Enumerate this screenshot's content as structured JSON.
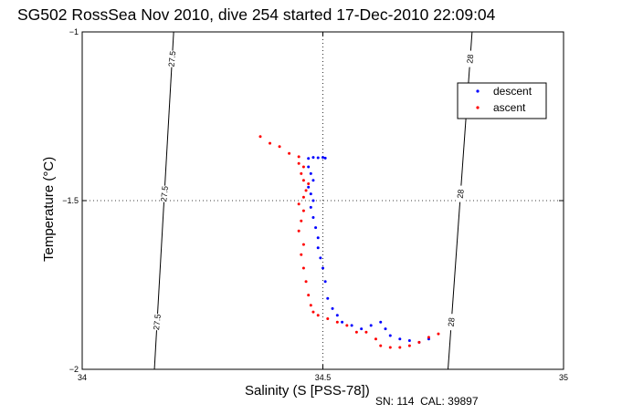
{
  "chart_data": {
    "type": "scatter",
    "title": "SG502 RossSea Nov 2010, dive 254 started 17-Dec-2010 22:09:04",
    "xlabel": "Salinity (S [PSS-78])",
    "ylabel": "Temperature (°C)",
    "xlim": [
      34,
      35
    ],
    "ylim": [
      -2,
      -1
    ],
    "xticks": [
      "34",
      "34.5",
      "35"
    ],
    "yticks": [
      "-1",
      "-1.5",
      "-2"
    ],
    "grid": "dotted at 34.5 and -1.5",
    "legend_position": "top-right",
    "footer": "SN: 114  CAL: 39897",
    "series": [
      {
        "name": "descent",
        "color": "#0000ff",
        "points": [
          [
            34.47,
            -1.375
          ],
          [
            34.48,
            -1.372
          ],
          [
            34.49,
            -1.373
          ],
          [
            34.5,
            -1.372
          ],
          [
            34.505,
            -1.374
          ],
          [
            34.47,
            -1.4
          ],
          [
            34.475,
            -1.42
          ],
          [
            34.48,
            -1.44
          ],
          [
            34.47,
            -1.46
          ],
          [
            34.475,
            -1.48
          ],
          [
            34.48,
            -1.5
          ],
          [
            34.475,
            -1.52
          ],
          [
            34.48,
            -1.55
          ],
          [
            34.485,
            -1.58
          ],
          [
            34.49,
            -1.61
          ],
          [
            34.49,
            -1.64
          ],
          [
            34.495,
            -1.67
          ],
          [
            34.5,
            -1.7
          ],
          [
            34.505,
            -1.74
          ],
          [
            34.51,
            -1.79
          ],
          [
            34.52,
            -1.82
          ],
          [
            34.53,
            -1.84
          ],
          [
            34.54,
            -1.86
          ],
          [
            34.56,
            -1.87
          ],
          [
            34.58,
            -1.88
          ],
          [
            34.6,
            -1.87
          ],
          [
            34.62,
            -1.86
          ],
          [
            34.63,
            -1.88
          ],
          [
            34.64,
            -1.9
          ],
          [
            34.66,
            -1.91
          ],
          [
            34.68,
            -1.915
          ],
          [
            34.7,
            -1.92
          ],
          [
            34.72,
            -1.91
          ]
        ]
      },
      {
        "name": "ascent",
        "color": "#ff0000",
        "points": [
          [
            34.37,
            -1.31
          ],
          [
            34.39,
            -1.33
          ],
          [
            34.41,
            -1.34
          ],
          [
            34.43,
            -1.36
          ],
          [
            34.45,
            -1.37
          ],
          [
            34.45,
            -1.39
          ],
          [
            34.46,
            -1.4
          ],
          [
            34.455,
            -1.42
          ],
          [
            34.46,
            -1.44
          ],
          [
            34.47,
            -1.45
          ],
          [
            34.465,
            -1.47
          ],
          [
            34.46,
            -1.49
          ],
          [
            34.45,
            -1.51
          ],
          [
            34.46,
            -1.53
          ],
          [
            34.455,
            -1.56
          ],
          [
            34.45,
            -1.59
          ],
          [
            34.46,
            -1.63
          ],
          [
            34.455,
            -1.66
          ],
          [
            34.46,
            -1.7
          ],
          [
            34.465,
            -1.74
          ],
          [
            34.47,
            -1.78
          ],
          [
            34.475,
            -1.81
          ],
          [
            34.48,
            -1.83
          ],
          [
            34.49,
            -1.84
          ],
          [
            34.51,
            -1.85
          ],
          [
            34.53,
            -1.86
          ],
          [
            34.55,
            -1.87
          ],
          [
            34.57,
            -1.89
          ],
          [
            34.59,
            -1.89
          ],
          [
            34.61,
            -1.91
          ],
          [
            34.62,
            -1.93
          ],
          [
            34.64,
            -1.935
          ],
          [
            34.66,
            -1.935
          ],
          [
            34.68,
            -1.93
          ],
          [
            34.7,
            -1.92
          ],
          [
            34.72,
            -1.905
          ],
          [
            34.74,
            -1.895
          ]
        ]
      }
    ],
    "contours": [
      {
        "label": "27.5",
        "x_top": 34.19,
        "x_bottom": 34.15
      },
      {
        "label": "28",
        "x_top": 34.81,
        "x_bottom": 34.76
      }
    ]
  }
}
